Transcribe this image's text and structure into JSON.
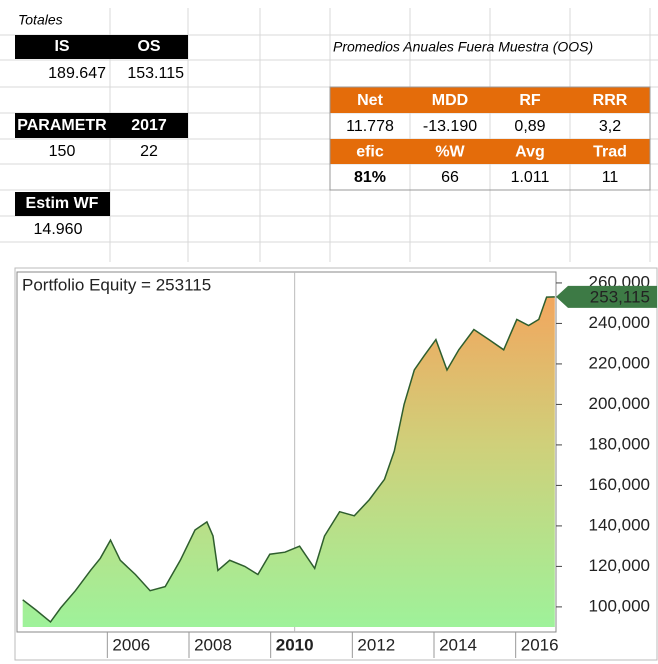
{
  "sheet": {
    "totals_label": "Totales",
    "totals": {
      "headers": [
        "IS",
        "OS"
      ],
      "values": [
        "189.647",
        "153.115"
      ]
    },
    "params": {
      "headers": [
        "PARAMETR",
        "2017"
      ],
      "values": [
        "150",
        "22"
      ]
    },
    "estim": {
      "header": "Estim WF",
      "value": "14.960"
    },
    "oos": {
      "title": "Promedios Anuales Fuera Muestra (OOS)",
      "rows": [
        [
          "Net",
          "MDD",
          "RF",
          "RRR"
        ],
        [
          "11.778",
          "-13.190",
          "0,89",
          "3,2"
        ],
        [
          "efic",
          "%W",
          "Avg",
          "Trad"
        ],
        [
          "81%",
          "66",
          "1.011",
          "11"
        ]
      ]
    }
  },
  "chart_data": {
    "type": "area",
    "title": "Portfolio Equity = 253115",
    "x": [
      2003.34,
      2003.66,
      2004.02,
      2004.27,
      2004.63,
      2005.0,
      2005.24,
      2005.49,
      2005.73,
      2006.1,
      2006.46,
      2006.83,
      2007.2,
      2007.56,
      2007.85,
      2008.0,
      2008.12,
      2008.41,
      2008.78,
      2009.1,
      2009.39,
      2009.76,
      2010.12,
      2010.49,
      2010.73,
      2011.1,
      2011.46,
      2011.83,
      2012.2,
      2012.44,
      2012.68,
      2012.93,
      2013.17,
      2013.46,
      2013.73,
      2014.02,
      2014.39,
      2014.76,
      2015.12,
      2015.44,
      2015.73,
      2015.98,
      2016.17,
      2016.37
    ],
    "values": [
      103500,
      98500,
      92600,
      99500,
      108000,
      118000,
      124000,
      133000,
      123000,
      116000,
      108000,
      110000,
      123000,
      138000,
      142000,
      135000,
      118000,
      123000,
      120000,
      116000,
      126000,
      127000,
      130000,
      119000,
      135000,
      147000,
      145000,
      153000,
      163000,
      177000,
      200000,
      217000,
      224000,
      232000,
      217000,
      227000,
      237000,
      232000,
      227000,
      242000,
      239000,
      242000,
      253000,
      253115
    ],
    "line_color": "#2e5e2e",
    "xlim": [
      2003.2,
      2016.4
    ],
    "xticks": [
      2006,
      2008,
      2010,
      2012,
      2014,
      2016
    ],
    "ylim": [
      87600,
      265400
    ],
    "yticks": [
      {
        "value": 100000,
        "label": "100,000"
      },
      {
        "value": 120000,
        "label": "120,000"
      },
      {
        "value": 140000,
        "label": "140,000"
      },
      {
        "value": 160000,
        "label": "160,000"
      },
      {
        "value": 180000,
        "label": "180,000"
      },
      {
        "value": 200000,
        "label": "200,000"
      },
      {
        "value": 220000,
        "label": "220,000"
      },
      {
        "value": 240000,
        "label": "240,000"
      },
      {
        "value": 260000,
        "label": "260,000"
      }
    ],
    "cursor": 2010,
    "current": {
      "value": 253115,
      "label": "253,115"
    }
  }
}
